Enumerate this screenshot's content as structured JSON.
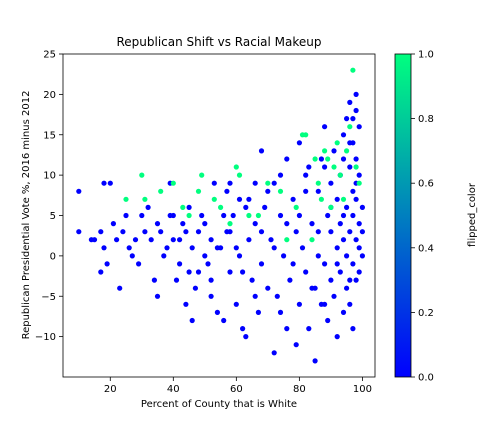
{
  "chart_data": {
    "type": "scatter",
    "title": "Republican Shift vs Racial Makeup",
    "xlabel": "Percent of County that is White",
    "ylabel": "Republican Presidential Vote %, 2016 minus 2012",
    "xlim": [
      5,
      104
    ],
    "ylim": [
      -15,
      25
    ],
    "x_ticks": [
      20,
      40,
      60,
      80,
      100
    ],
    "y_ticks": [
      -10,
      -5,
      0,
      5,
      10,
      15,
      20,
      25
    ],
    "colorbar": {
      "label": "flipped_color",
      "range": [
        0.0,
        1.0
      ],
      "ticks": [
        "0.0",
        "0.2",
        "0.4",
        "0.6",
        "0.8",
        "1.0"
      ],
      "low_color": "#0000ff",
      "high_color": "#00ff7f"
    },
    "series": [
      {
        "flipped_color": 0.0,
        "color": "#0000ff",
        "points": [
          [
            10,
            8
          ],
          [
            10,
            3
          ],
          [
            14,
            2
          ],
          [
            15,
            2
          ],
          [
            17,
            3
          ],
          [
            18,
            1
          ],
          [
            17,
            -2
          ],
          [
            18,
            9
          ],
          [
            20,
            9
          ],
          [
            19,
            -1
          ],
          [
            22,
            2
          ],
          [
            21,
            4
          ],
          [
            23,
            -4
          ],
          [
            24,
            3
          ],
          [
            25,
            5
          ],
          [
            26,
            1
          ],
          [
            27,
            0
          ],
          [
            28,
            2
          ],
          [
            29,
            -1
          ],
          [
            30,
            5
          ],
          [
            31,
            3
          ],
          [
            32,
            6
          ],
          [
            33,
            2
          ],
          [
            34,
            -3
          ],
          [
            35,
            -5
          ],
          [
            35,
            4
          ],
          [
            36,
            3
          ],
          [
            37,
            0
          ],
          [
            38,
            1
          ],
          [
            39,
            5
          ],
          [
            39,
            9
          ],
          [
            40,
            2
          ],
          [
            41,
            -3
          ],
          [
            42,
            -1
          ],
          [
            43,
            4
          ],
          [
            44,
            -6
          ],
          [
            45,
            6
          ],
          [
            45,
            -2
          ],
          [
            46,
            -8
          ],
          [
            47,
            -4
          ],
          [
            48,
            3
          ],
          [
            49,
            5
          ],
          [
            50,
            0
          ],
          [
            51,
            -1
          ],
          [
            52,
            2
          ],
          [
            52,
            -5
          ],
          [
            53,
            9
          ],
          [
            54,
            -7
          ],
          [
            55,
            1
          ],
          [
            56,
            -8
          ],
          [
            57,
            3
          ],
          [
            57,
            8
          ],
          [
            58,
            -2
          ],
          [
            59,
            5
          ],
          [
            60,
            -6
          ],
          [
            61,
            0
          ],
          [
            61,
            7
          ],
          [
            62,
            -9
          ],
          [
            63,
            -10
          ],
          [
            63,
            6
          ],
          [
            64,
            2
          ],
          [
            65,
            -3
          ],
          [
            66,
            4
          ],
          [
            67,
            -7
          ],
          [
            68,
            13
          ],
          [
            68,
            -1
          ],
          [
            69,
            6
          ],
          [
            70,
            -4
          ],
          [
            71,
            2
          ],
          [
            72,
            -12
          ],
          [
            72,
            9
          ],
          [
            73,
            -5
          ],
          [
            74,
            5
          ],
          [
            75,
            0
          ],
          [
            76,
            -9
          ],
          [
            76,
            12
          ],
          [
            77,
            -3
          ],
          [
            78,
            7
          ],
          [
            79,
            -11
          ],
          [
            79,
            3
          ],
          [
            80,
            -6
          ],
          [
            80,
            14
          ],
          [
            81,
            1
          ],
          [
            82,
            -2
          ],
          [
            83,
            -9
          ],
          [
            83,
            11
          ],
          [
            84,
            4
          ],
          [
            85,
            -4
          ],
          [
            85,
            -13
          ],
          [
            86,
            8
          ],
          [
            86,
            0
          ],
          [
            87,
            -6
          ],
          [
            87,
            12
          ],
          [
            88,
            -1
          ],
          [
            88,
            16
          ],
          [
            89,
            -8
          ],
          [
            89,
            5
          ],
          [
            90,
            3
          ],
          [
            90,
            -3
          ],
          [
            90,
            9
          ],
          [
            91,
            -5
          ],
          [
            91,
            13
          ],
          [
            92,
            1
          ],
          [
            92,
            7
          ],
          [
            92,
            -10
          ],
          [
            93,
            4
          ],
          [
            93,
            10
          ],
          [
            93,
            -2
          ],
          [
            94,
            -7
          ],
          [
            94,
            15
          ],
          [
            94,
            2
          ],
          [
            95,
            6
          ],
          [
            95,
            -4
          ],
          [
            95,
            17
          ],
          [
            95,
            0
          ],
          [
            96,
            11
          ],
          [
            96,
            -6
          ],
          [
            96,
            3
          ],
          [
            96,
            19
          ],
          [
            97,
            8
          ],
          [
            97,
            -1
          ],
          [
            97,
            14
          ],
          [
            97,
            5
          ],
          [
            97,
            -9
          ],
          [
            98,
            2
          ],
          [
            98,
            12
          ],
          [
            98,
            20
          ],
          [
            98,
            -3
          ],
          [
            98,
            7
          ],
          [
            99,
            10
          ],
          [
            99,
            1
          ],
          [
            99,
            4
          ],
          [
            99,
            -2
          ],
          [
            99,
            16
          ],
          [
            100,
            6
          ],
          [
            100,
            0
          ],
          [
            100,
            3
          ],
          [
            44,
            3
          ],
          [
            46,
            1
          ],
          [
            48,
            -2
          ],
          [
            50,
            4
          ],
          [
            52,
            -3
          ],
          [
            54,
            1
          ],
          [
            56,
            5
          ],
          [
            58,
            3
          ],
          [
            60,
            1
          ],
          [
            62,
            -2
          ],
          [
            64,
            7
          ],
          [
            66,
            -5
          ],
          [
            68,
            3
          ],
          [
            70,
            8
          ],
          [
            72,
            1
          ],
          [
            74,
            -7
          ],
          [
            76,
            4
          ],
          [
            78,
            -1
          ],
          [
            80,
            5
          ],
          [
            82,
            8
          ],
          [
            84,
            -4
          ],
          [
            86,
            3
          ],
          [
            88,
            -6
          ],
          [
            90,
            6
          ],
          [
            92,
            -1
          ],
          [
            94,
            5
          ],
          [
            96,
            -3
          ],
          [
            98,
            9
          ],
          [
            40,
            5
          ],
          [
            42,
            2
          ],
          [
            58,
            9
          ],
          [
            66,
            9
          ],
          [
            74,
            10
          ],
          [
            82,
            10
          ],
          [
            88,
            11
          ],
          [
            94,
            12
          ],
          [
            96,
            14
          ],
          [
            97,
            17
          ],
          [
            98,
            18
          ]
        ]
      },
      {
        "flipped_color": 1.0,
        "color": "#00ff7f",
        "points": [
          [
            30,
            10
          ],
          [
            25,
            7
          ],
          [
            31,
            7
          ],
          [
            36,
            8
          ],
          [
            40,
            9
          ],
          [
            43,
            6
          ],
          [
            45,
            5
          ],
          [
            48,
            8
          ],
          [
            49,
            10
          ],
          [
            53,
            7
          ],
          [
            55,
            6
          ],
          [
            58,
            4
          ],
          [
            60,
            11
          ],
          [
            61,
            10
          ],
          [
            64,
            5
          ],
          [
            67,
            5
          ],
          [
            70,
            9
          ],
          [
            74,
            8
          ],
          [
            76,
            2
          ],
          [
            79,
            6
          ],
          [
            81,
            15
          ],
          [
            82,
            15
          ],
          [
            85,
            12
          ],
          [
            86,
            9
          ],
          [
            88,
            13
          ],
          [
            89,
            12
          ],
          [
            90,
            6
          ],
          [
            92,
            14
          ],
          [
            93,
            10
          ],
          [
            94,
            7
          ],
          [
            95,
            13
          ],
          [
            96,
            16
          ],
          [
            97,
            23
          ],
          [
            98,
            11
          ],
          [
            99,
            9
          ],
          [
            87,
            7
          ],
          [
            84,
            2
          ],
          [
            91,
            11
          ]
        ]
      }
    ]
  }
}
